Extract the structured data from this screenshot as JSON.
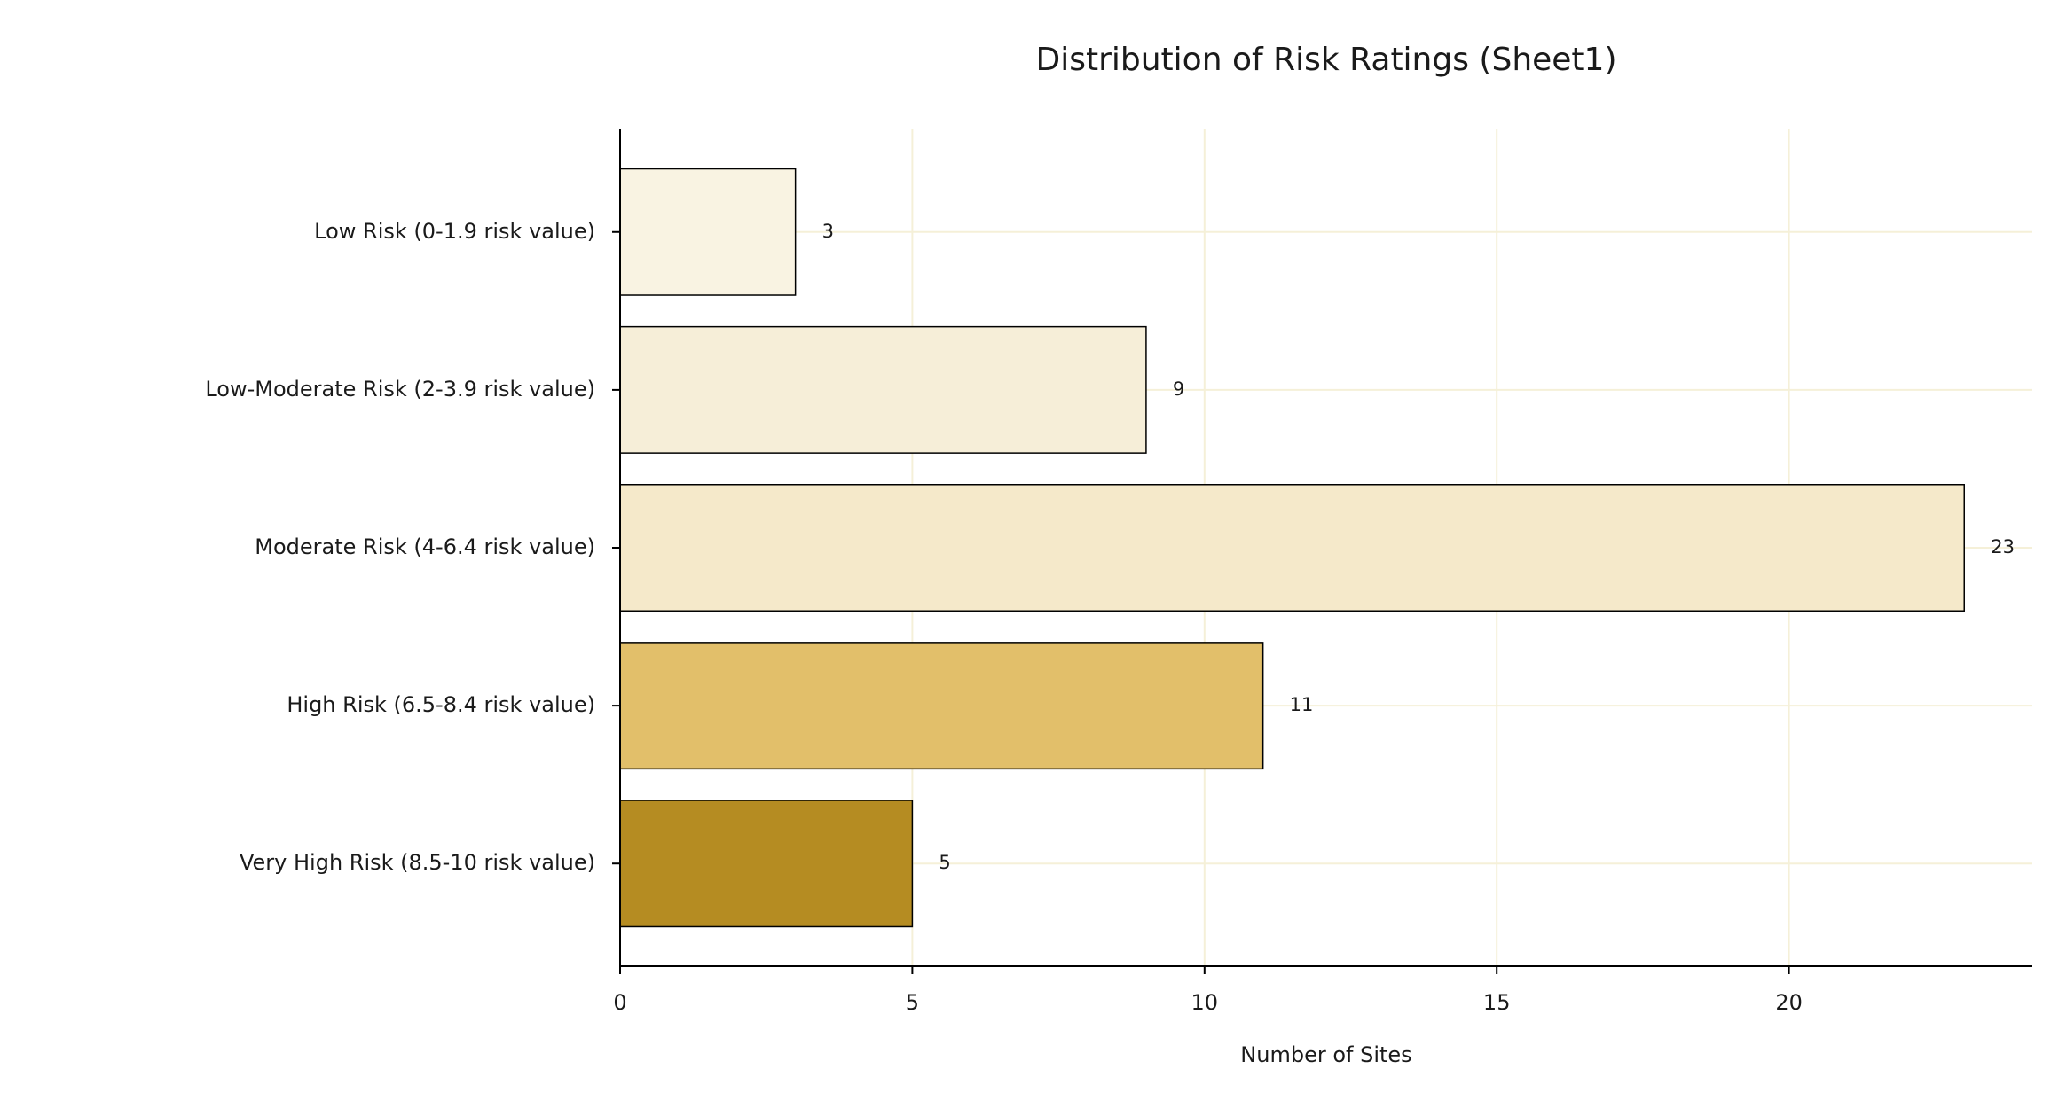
{
  "chart_data": {
    "type": "barh",
    "title": "Distribution of Risk Ratings (Sheet1)",
    "categories": [
      "Low Risk (0-1.9 risk value)",
      "Low-Moderate Risk (2-3.9 risk value)",
      "Moderate Risk (4-6.4 risk value)",
      "High Risk (6.5-8.4 risk value)",
      "Very High Risk (8.5-10 risk value)"
    ],
    "values": [
      3,
      9,
      23,
      11,
      5
    ],
    "colors": [
      "#f9f3e2",
      "#f6eed8",
      "#f5e9ca",
      "#e2bf6a",
      "#b58c22"
    ],
    "x_label": "Number of Sites",
    "xlim": [
      0,
      24.15
    ],
    "xticks": [
      0,
      5,
      10,
      15,
      20
    ],
    "grid": true
  }
}
